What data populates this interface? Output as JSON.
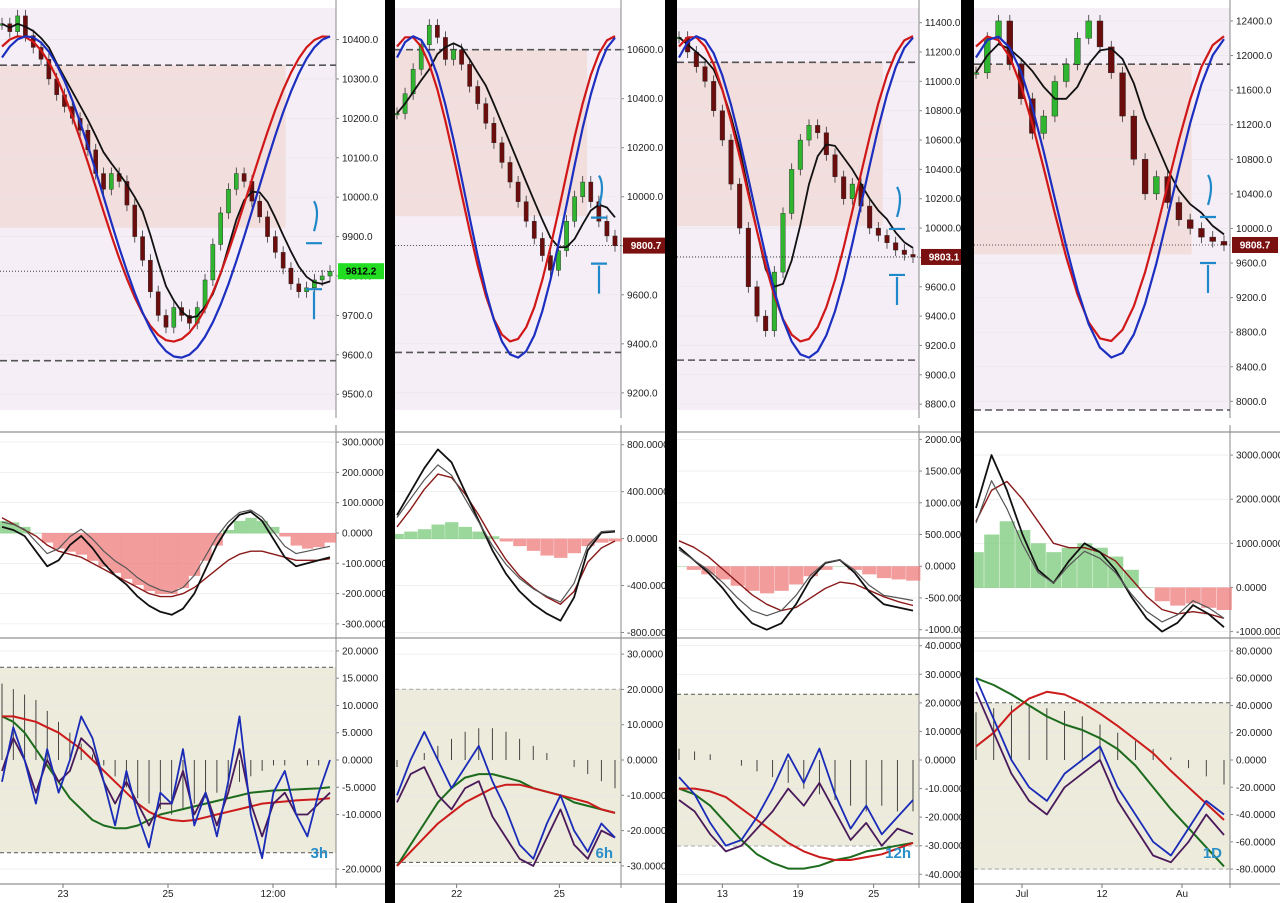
{
  "chart_data": [
    {
      "type": "line",
      "timeframe": "3h",
      "price": {
        "ticks": [
          "10400.0",
          "10300.0",
          "10200.0",
          "10100.0",
          "10000.0",
          "9900.0",
          "9800.0",
          "9700.0",
          "9600.0",
          "9500.0"
        ],
        "tick_values": [
          10400,
          10300,
          10200,
          10100,
          10000,
          9900,
          9800,
          9700,
          9600,
          9500
        ],
        "ylim": [
          9460,
          10480
        ],
        "last_price": "9812.2",
        "last_value": 9812.2,
        "badge_color": "#22dd22",
        "support": 9585,
        "resistance": 10335,
        "closes": [
          10440,
          10420,
          10460,
          10410,
          10380,
          10350,
          10300,
          10260,
          10230,
          10200,
          10170,
          10120,
          10060,
          10020,
          10060,
          10040,
          9980,
          9900,
          9840,
          9760,
          9700,
          9670,
          9720,
          9700,
          9680,
          9720,
          9790,
          9880,
          9960,
          10020,
          10060,
          10040,
          9990,
          9950,
          9900,
          9860,
          9820,
          9780,
          9760,
          9770,
          9790,
          9800,
          9812
        ]
      },
      "osc1": {
        "ticks": [
          "300.0000",
          "200.0000",
          "100.0000",
          "0.0000",
          "-100.0000",
          "-200.0000",
          "-300.0000"
        ],
        "tick_values": [
          300,
          200,
          100,
          0,
          -100,
          -200,
          -300
        ],
        "ylim": [
          -340,
          330
        ],
        "fast": [
          20,
          10,
          -10,
          -60,
          -110,
          -90,
          -40,
          -10,
          -50,
          -100,
          -140,
          -170,
          -210,
          -240,
          -260,
          -270,
          -250,
          -200,
          -120,
          -40,
          20,
          60,
          70,
          40,
          -20,
          -80,
          -110,
          -100,
          -90,
          -80
        ],
        "slow": [
          50,
          30,
          10,
          -10,
          -40,
          -60,
          -70,
          -80,
          -100,
          -120,
          -140,
          -160,
          -180,
          -200,
          -210,
          -210,
          -200,
          -180,
          -150,
          -120,
          -90,
          -70,
          -60,
          -60,
          -70,
          -80,
          -90,
          -90,
          -90,
          -85
        ],
        "hist": [
          40,
          35,
          20,
          0,
          -30,
          -50,
          -60,
          -70,
          -90,
          -110,
          -130,
          -150,
          -170,
          -190,
          -200,
          -200,
          -180,
          -140,
          -90,
          -40,
          10,
          40,
          50,
          40,
          20,
          -10,
          -40,
          -50,
          -45,
          -30
        ]
      },
      "osc2": {
        "ticks": [
          "20.0000",
          "15.0000",
          "10.0000",
          "5.0000",
          "0.0000",
          "-5.0000",
          "-10.0000",
          "-20.0000"
        ],
        "tick_values": [
          20,
          15,
          10,
          5,
          0,
          -5,
          -10,
          -20
        ],
        "ylim": [
          -22,
          22
        ],
        "band": [
          -17,
          17
        ],
        "blue": [
          -4,
          6,
          0,
          -8,
          2,
          -6,
          0,
          8,
          4,
          -4,
          -12,
          -2,
          -10,
          -16,
          -6,
          -8,
          2,
          -12,
          -6,
          -14,
          -4,
          8,
          -10,
          -18,
          -6,
          -2,
          -10,
          -14,
          -6,
          0
        ],
        "purple": [
          -2,
          4,
          0,
          -6,
          0,
          -4,
          -2,
          4,
          2,
          -4,
          -8,
          -4,
          -8,
          -12,
          -8,
          -8,
          -2,
          -10,
          -6,
          -12,
          -6,
          2,
          -8,
          -14,
          -8,
          -6,
          -10,
          -10,
          -8,
          -6
        ],
        "red": [
          8,
          8,
          7.5,
          7,
          6,
          5,
          3.5,
          2,
          0,
          -2,
          -4,
          -6,
          -8,
          -9.5,
          -10.5,
          -11,
          -11.2,
          -11,
          -10.5,
          -10,
          -9.5,
          -9,
          -8.5,
          -8,
          -7.8,
          -7.6,
          -7.4,
          -7.3,
          -7.2,
          -7
        ],
        "green": [
          8,
          7,
          5,
          2,
          -1,
          -4,
          -7,
          -9,
          -11,
          -12,
          -12.5,
          -12.5,
          -12,
          -11,
          -10,
          -9.5,
          -9,
          -8.5,
          -8,
          -7.5,
          -7,
          -6.5,
          -6,
          -5.8,
          -5.6,
          -5.5,
          -5.4,
          -5.3,
          -5.2,
          -5
        ],
        "hist": [
          14,
          13,
          12,
          11,
          9,
          7,
          5,
          3,
          1,
          -1,
          -3,
          -5,
          -7,
          -8,
          -9,
          -10,
          -9,
          -8,
          -7,
          -6,
          -5,
          -4,
          -3,
          -2,
          -1,
          -1,
          0,
          -1,
          -1,
          0
        ]
      },
      "dates": [
        "23",
        "25",
        "12:00"
      ],
      "label": "3h"
    },
    {
      "type": "line",
      "timeframe": "6h",
      "price": {
        "ticks": [
          "10600.0",
          "10400.0",
          "10200.0",
          "10000.0",
          "9800.0",
          "9600.0",
          "9400.0",
          "9200.0"
        ],
        "tick_values": [
          10600,
          10400,
          10200,
          10000,
          9800,
          9600,
          9400,
          9200
        ],
        "ylim": [
          9130,
          10770
        ],
        "last_price": "9800.7",
        "last_value": 9800.7,
        "badge_color": "#7a1010",
        "support": 9365,
        "resistance": 10600,
        "closes": [
          10340,
          10420,
          10520,
          10620,
          10700,
          10650,
          10560,
          10600,
          10540,
          10450,
          10380,
          10300,
          10220,
          10140,
          10060,
          9980,
          9900,
          9830,
          9760,
          9700,
          9780,
          9900,
          10000,
          10060,
          9980,
          9900,
          9840,
          9800
        ]
      },
      "osc1": {
        "ticks": [
          "800.0000",
          "400.0000",
          "0.0000",
          "-400.0000",
          "-800.0000"
        ],
        "tick_values": [
          800,
          400,
          0,
          -400,
          -800
        ],
        "ylim": [
          -830,
          900
        ],
        "fast": [
          200,
          400,
          600,
          760,
          650,
          400,
          150,
          -100,
          -300,
          -450,
          -560,
          -640,
          -700,
          -500,
          -100,
          50,
          60
        ],
        "slow": [
          100,
          250,
          420,
          550,
          520,
          380,
          200,
          0,
          -180,
          -320,
          -420,
          -500,
          -560,
          -450,
          -200,
          -80,
          -20
        ],
        "hist": [
          40,
          60,
          80,
          120,
          140,
          100,
          60,
          20,
          -20,
          -60,
          -100,
          -140,
          -160,
          -120,
          -60,
          -30,
          -20
        ]
      },
      "osc2": {
        "ticks": [
          "30.0000",
          "20.0000",
          "10.0000",
          "0.0000",
          "-10.0000",
          "-20.0000",
          "-30.0000"
        ],
        "tick_values": [
          30,
          20,
          10,
          0,
          -10,
          -20,
          -30
        ],
        "ylim": [
          -34,
          34
        ],
        "band": [
          -29,
          20
        ],
        "blue": [
          -10,
          0,
          8,
          0,
          -8,
          -2,
          4,
          -6,
          -14,
          -24,
          -28,
          -18,
          -10,
          -20,
          -26,
          -18,
          -22
        ],
        "purple": [
          -12,
          -4,
          -2,
          -10,
          -14,
          -8,
          -6,
          -16,
          -22,
          -28,
          -30,
          -22,
          -14,
          -24,
          -28,
          -20,
          -22
        ],
        "red": [
          -30,
          -26,
          -22,
          -18,
          -15,
          -12,
          -10,
          -8,
          -7,
          -7,
          -8,
          -9,
          -10,
          -11,
          -12,
          -14,
          -15
        ],
        "green": [
          -30,
          -24,
          -18,
          -12,
          -8,
          -5,
          -4,
          -4,
          -5,
          -6,
          -8,
          -9,
          -10,
          -12,
          -13,
          -14,
          -15
        ],
        "hist": [
          -2,
          0,
          2,
          4,
          6,
          8,
          9,
          9,
          8,
          6,
          4,
          2,
          0,
          -2,
          -4,
          -6,
          -8
        ]
      },
      "dates": [
        "22",
        "25"
      ],
      "label": "6h"
    },
    {
      "type": "line",
      "timeframe": "12h",
      "price": {
        "ticks": [
          "11400.0",
          "11200.0",
          "11000.0",
          "10800.0",
          "10600.0",
          "10400.0",
          "10200.0",
          "10000.0",
          "9800.0",
          "9600.0",
          "9400.0",
          "9200.0",
          "9000.0",
          "8800.0"
        ],
        "tick_values": [
          11400,
          11200,
          11000,
          10800,
          10600,
          10400,
          10200,
          10000,
          9800,
          9600,
          9400,
          9200,
          9000,
          8800
        ],
        "ylim": [
          8760,
          11500
        ],
        "last_price": "9803.1",
        "last_value": 9803.1,
        "badge_color": "#7a1010",
        "support": 9100,
        "resistance": 11130,
        "closes": [
          11300,
          11200,
          11100,
          11000,
          10800,
          10600,
          10300,
          10000,
          9600,
          9400,
          9300,
          9700,
          10100,
          10400,
          10600,
          10700,
          10650,
          10500,
          10350,
          10200,
          10300,
          10150,
          10000,
          9950,
          9900,
          9850,
          9820,
          9803
        ]
      },
      "osc1": {
        "ticks": [
          "2000.0000",
          "1500.0000",
          "1000.0000",
          "500.0000",
          "0.0000",
          "-500.0000",
          "-1000.0000"
        ],
        "tick_values": [
          2000,
          1500,
          1000,
          500,
          0,
          -500,
          -1000
        ],
        "ylim": [
          -1100,
          2100
        ],
        "fast": [
          300,
          100,
          -100,
          -350,
          -650,
          -900,
          -1000,
          -900,
          -600,
          -200,
          50,
          100,
          -100,
          -400,
          -600,
          -650,
          -700
        ],
        "slow": [
          400,
          300,
          150,
          -50,
          -250,
          -450,
          -600,
          -700,
          -650,
          -500,
          -350,
          -250,
          -280,
          -380,
          -480,
          -560,
          -620
        ],
        "hist": [
          0,
          -50,
          -120,
          -200,
          -300,
          -380,
          -420,
          -380,
          -280,
          -150,
          -50,
          0,
          -50,
          -120,
          -180,
          -200,
          -220
        ]
      },
      "osc2": {
        "ticks": [
          "40.0000",
          "30.0000",
          "20.0000",
          "10.0000",
          "0.0000",
          "-10.0000",
          "-20.0000",
          "-30.0000",
          "-40.0000"
        ],
        "tick_values": [
          40,
          30,
          20,
          10,
          0,
          -10,
          -20,
          -30,
          -40
        ],
        "ylim": [
          -42,
          42
        ],
        "band": [
          -30,
          23
        ],
        "blue": [
          -6,
          -12,
          -22,
          -30,
          -28,
          -20,
          -10,
          2,
          -8,
          4,
          -12,
          -24,
          -16,
          -26,
          -20,
          -14
        ],
        "purple": [
          -14,
          -18,
          -26,
          -32,
          -30,
          -24,
          -18,
          -10,
          -16,
          -8,
          -18,
          -28,
          -22,
          -30,
          -24,
          -26
        ],
        "red": [
          -10,
          -10,
          -11,
          -13,
          -17,
          -21,
          -25,
          -29,
          -32,
          -34,
          -35,
          -35,
          -34,
          -33,
          -31,
          -29
        ],
        "green": [
          -10,
          -12,
          -16,
          -22,
          -28,
          -33,
          -36,
          -38,
          -38,
          -37,
          -35,
          -34,
          -32,
          -31,
          -30,
          -29
        ],
        "hist": [
          4,
          3,
          2,
          0,
          -2,
          -4,
          -6,
          -8,
          -10,
          -12,
          -14,
          -16,
          -18,
          -16,
          -18,
          -18
        ]
      },
      "dates": [
        "13",
        "19",
        "25"
      ],
      "label": "12h"
    },
    {
      "type": "line",
      "timeframe": "1D",
      "price": {
        "ticks": [
          "12400.0",
          "12000.0",
          "11600.0",
          "11200.0",
          "10800.0",
          "10400.0",
          "10000.0",
          "9600.0",
          "9200.0",
          "8800.0",
          "8400.0",
          "8000.0"
        ],
        "tick_values": [
          12400,
          12000,
          11600,
          11200,
          10800,
          10400,
          10000,
          9600,
          9200,
          8800,
          8400,
          8000
        ],
        "ylim": [
          7900,
          12550
        ],
        "last_price": "9808.7",
        "last_value": 9808.7,
        "badge_color": "#7a1010",
        "support": 7900,
        "resistance": 11900,
        "closes": [
          11800,
          12200,
          12400,
          11900,
          11500,
          11100,
          11300,
          11700,
          11900,
          12200,
          12400,
          12100,
          11800,
          11300,
          10800,
          10400,
          10600,
          10300,
          10100,
          10000,
          9900,
          9850,
          9808
        ]
      },
      "osc1": {
        "ticks": [
          "3000.0000",
          "2000.0000",
          "1000.0000",
          "0.0000",
          "-1000.0000"
        ],
        "tick_values": [
          3000,
          2000,
          1000,
          0,
          -1000
        ],
        "ylim": [
          -1100,
          3500
        ],
        "fast": [
          1800,
          3000,
          2200,
          1200,
          400,
          100,
          600,
          1000,
          800,
          400,
          -200,
          -700,
          -1000,
          -800,
          -400,
          -600,
          -900
        ],
        "slow": [
          1500,
          2200,
          2400,
          2000,
          1500,
          1000,
          900,
          900,
          800,
          600,
          200,
          -200,
          -500,
          -600,
          -550,
          -600,
          -700
        ],
        "hist": [
          800,
          1200,
          1500,
          1300,
          1000,
          800,
          900,
          1000,
          900,
          700,
          400,
          0,
          -300,
          -400,
          -350,
          -450,
          -500
        ]
      },
      "osc2": {
        "ticks": [
          "80.0000",
          "60.0000",
          "40.0000",
          "20.0000",
          "0.0000",
          "-20.0000",
          "-40.0000",
          "-60.0000",
          "-80.0000"
        ],
        "tick_values": [
          80,
          60,
          40,
          20,
          0,
          -20,
          -40,
          -60,
          -80
        ],
        "ylim": [
          -88,
          88
        ],
        "band": [
          -80,
          42
        ],
        "blue": [
          60,
          30,
          0,
          -20,
          -30,
          -10,
          0,
          10,
          -20,
          -40,
          -60,
          -70,
          -50,
          -30,
          -40
        ],
        "purple": [
          50,
          20,
          -10,
          -30,
          -40,
          -20,
          -10,
          0,
          -30,
          -50,
          -70,
          -75,
          -60,
          -40,
          -55
        ],
        "red": [
          10,
          20,
          35,
          45,
          50,
          48,
          42,
          34,
          25,
          15,
          5,
          -8,
          -20,
          -32,
          -44
        ],
        "green": [
          60,
          55,
          48,
          40,
          32,
          26,
          22,
          16,
          8,
          -4,
          -20,
          -36,
          -50,
          -64,
          -78
        ],
        "hist": [
          35,
          38,
          40,
          40,
          38,
          36,
          32,
          26,
          20,
          14,
          8,
          2,
          -6,
          -12,
          -18
        ]
      },
      "dates": [
        "Jul",
        "12",
        "Au"
      ],
      "label": "1D"
    }
  ]
}
